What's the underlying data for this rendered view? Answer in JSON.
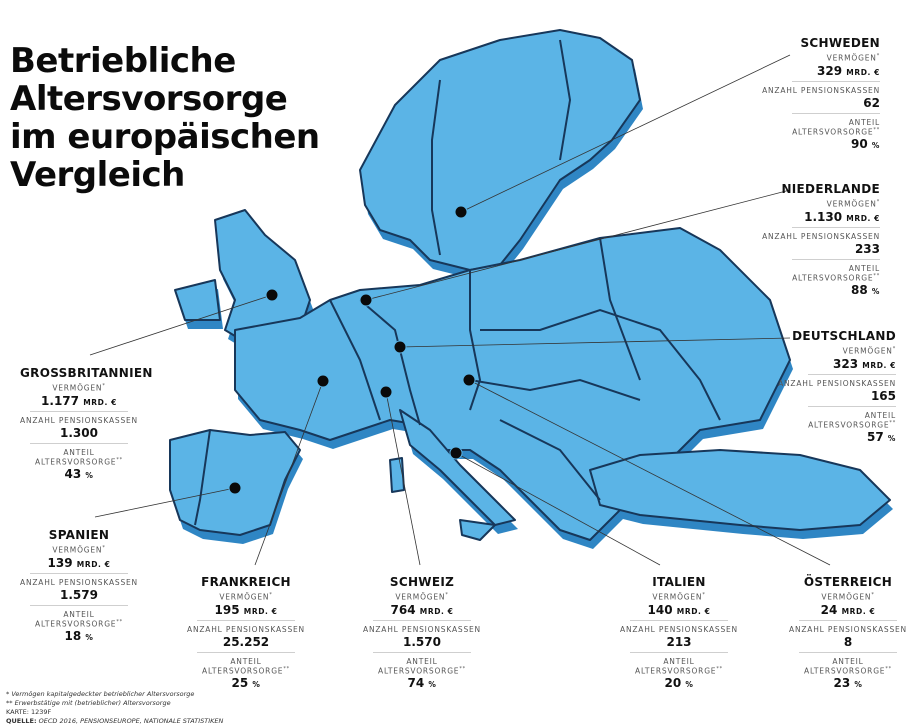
{
  "title_lines": [
    "Betriebliche",
    "Altersvorsorge",
    "im europäischen",
    "Vergleich"
  ],
  "labels": {
    "vermoegen": "VERMÖGEN",
    "vermoegen_mark": "*",
    "pensionskassen": "ANZAHL PENSIONSKASSEN",
    "anteil": "ANTEIL ALTERSVORSORGE",
    "anteil_mark": "**",
    "unit": "MRD. €",
    "pct": "%"
  },
  "countries": {
    "schweden": {
      "name": "SCHWEDEN",
      "vermoegen": "329",
      "pensionskassen": "62",
      "anteil": "90"
    },
    "niederlande": {
      "name": "NIEDERLANDE",
      "vermoegen": "1.130",
      "pensionskassen": "233",
      "anteil": "88"
    },
    "deutschland": {
      "name": "DEUTSCHLAND",
      "vermoegen": "323",
      "pensionskassen": "165",
      "anteil": "57"
    },
    "grossbritannien": {
      "name": "GROSSBRITANNIEN",
      "vermoegen": "1.177",
      "pensionskassen": "1.300",
      "anteil": "43"
    },
    "spanien": {
      "name": "SPANIEN",
      "vermoegen": "139",
      "pensionskassen": "1.579",
      "anteil": "18"
    },
    "frankreich": {
      "name": "FRANKREICH",
      "vermoegen": "195",
      "pensionskassen": "25.252",
      "anteil": "25"
    },
    "schweiz": {
      "name": "SCHWEIZ",
      "vermoegen": "764",
      "pensionskassen": "1.570",
      "anteil": "74"
    },
    "italien": {
      "name": "ITALIEN",
      "vermoegen": "140",
      "pensionskassen": "213",
      "anteil": "20"
    },
    "oesterreich": {
      "name": "ÖSTERREICH",
      "vermoegen": "24",
      "pensionskassen": "8",
      "anteil": "23"
    }
  },
  "footnotes": {
    "note1": "* Vermögen kapitalgedeckter betrieblicher Altersvorsorge",
    "note2": "** Erwerbstätige mit (betrieblicher) Altersvorsorge",
    "karte": "KARTE: 1239F",
    "quelle_label": "QUELLE:",
    "quelle": " OECD 2016, PENSIONSEUROPE, NATIONALE STATISTIKEN"
  },
  "colors": {
    "land": "#5bb4e6",
    "land_side": "#2f86c4",
    "border": "#17375a",
    "dot": "#0a0a0a",
    "leader": "#333333"
  }
}
